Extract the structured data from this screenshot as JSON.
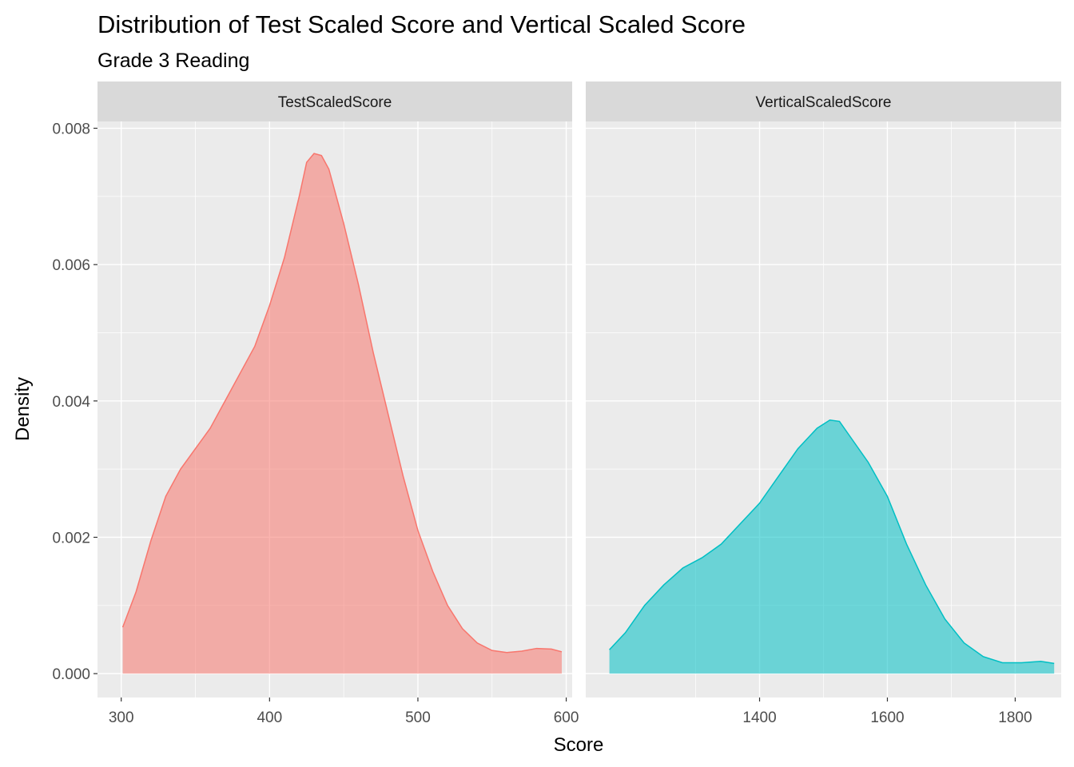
{
  "chart_data": {
    "type": "area",
    "title": "Distribution of Test Scaled Score and Vertical Scaled Score",
    "subtitle": "Grade 3 Reading",
    "xlabel": "Score",
    "ylabel": "Density",
    "ylim": [
      -0.00035,
      0.0081
    ],
    "y_ticks": [
      0.0,
      0.002,
      0.004,
      0.006,
      0.008
    ],
    "y_tick_labels": [
      "0.000",
      "0.002",
      "0.004",
      "0.006",
      "0.008"
    ],
    "grid": true,
    "legend": "none",
    "panels": [
      {
        "name": "TestScaledScore",
        "color": "#F8766D",
        "xlim": [
          284,
          604
        ],
        "x_ticks": [
          300,
          400,
          500,
          600
        ],
        "x_tick_labels": [
          "300",
          "400",
          "500",
          "600"
        ],
        "x": [
          301,
          310,
          320,
          330,
          340,
          350,
          360,
          370,
          380,
          390,
          400,
          410,
          420,
          425,
          430,
          435,
          440,
          450,
          460,
          470,
          480,
          490,
          500,
          510,
          520,
          530,
          540,
          550,
          560,
          570,
          580,
          590,
          597
        ],
        "y": [
          0.00068,
          0.0012,
          0.00195,
          0.0026,
          0.003,
          0.0033,
          0.0036,
          0.004,
          0.0044,
          0.0048,
          0.0054,
          0.0061,
          0.007,
          0.0075,
          0.00763,
          0.0076,
          0.0074,
          0.0066,
          0.0057,
          0.0047,
          0.0038,
          0.0029,
          0.0021,
          0.0015,
          0.001,
          0.00066,
          0.00045,
          0.00034,
          0.00031,
          0.00033,
          0.00037,
          0.00036,
          0.00032
        ]
      },
      {
        "name": "VerticalScaledScore",
        "color": "#00BFC4",
        "xlim": [
          1128,
          1872
        ],
        "x_ticks": [
          1400,
          1600,
          1800
        ],
        "x_tick_labels": [
          "1400",
          "1600",
          "1800"
        ],
        "x": [
          1165,
          1190,
          1220,
          1250,
          1280,
          1310,
          1340,
          1370,
          1400,
          1430,
          1460,
          1490,
          1510,
          1525,
          1540,
          1570,
          1600,
          1630,
          1660,
          1690,
          1720,
          1750,
          1780,
          1810,
          1840,
          1861
        ],
        "y": [
          0.00035,
          0.0006,
          0.001,
          0.0013,
          0.00155,
          0.0017,
          0.0019,
          0.0022,
          0.0025,
          0.0029,
          0.0033,
          0.0036,
          0.00372,
          0.0037,
          0.0035,
          0.0031,
          0.0026,
          0.0019,
          0.0013,
          0.0008,
          0.00045,
          0.00025,
          0.00016,
          0.00016,
          0.00018,
          0.00015
        ]
      }
    ]
  }
}
